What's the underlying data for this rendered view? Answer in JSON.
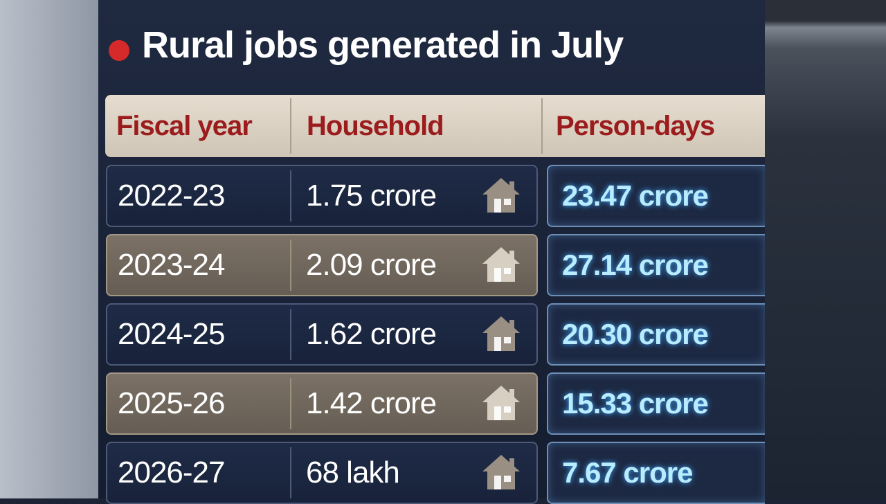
{
  "header": {
    "title": "Rural jobs generated in July"
  },
  "table": {
    "columns": [
      "Fiscal year",
      "Household",
      "Person-days"
    ],
    "rows": [
      [
        "2022-23",
        "1.75 crore",
        "23.47 crore"
      ],
      [
        "2023-24",
        "2.09 crore",
        "27.14 crore"
      ],
      [
        "2024-25",
        "1.62 crore",
        "20.30 crore"
      ],
      [
        "2025-26",
        "1.42 crore",
        "15.33 crore"
      ],
      [
        "2026-27",
        "68 lakh",
        "7.67 crore"
      ]
    ]
  }
}
